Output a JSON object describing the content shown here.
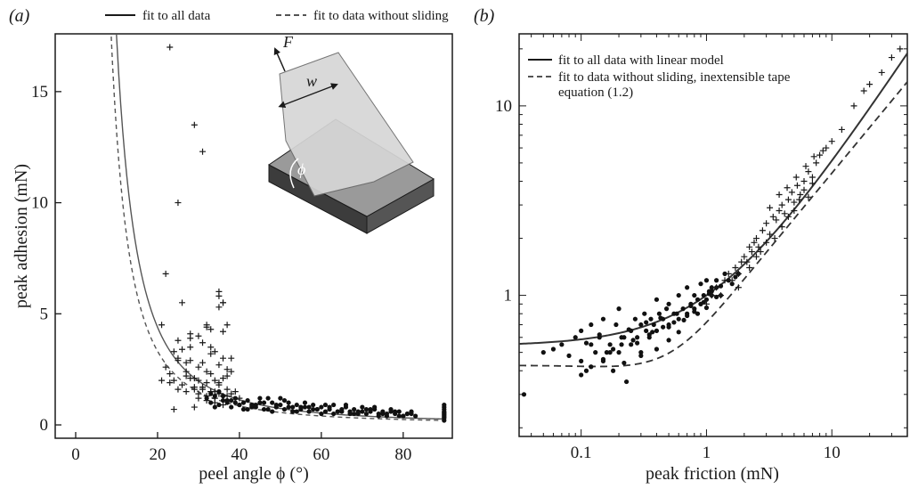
{
  "chart_data": [
    {
      "panel": "(a)",
      "type": "scatter",
      "xlabel": "peel angle ϕ (°)",
      "ylabel": "peak adhesion (mN)",
      "xlim": [
        -5,
        92
      ],
      "ylim": [
        -0.6,
        17.6
      ],
      "xticks": [
        0,
        20,
        40,
        60,
        80
      ],
      "yticks": [
        0,
        5,
        10,
        15
      ],
      "grid": false,
      "legend_position": "top",
      "series": [
        {
          "name": "fit to all data",
          "kind": "curve",
          "style": "solid",
          "color": "#555555",
          "amplitude": 26.5
        },
        {
          "name": "fit to data without sliding",
          "kind": "curve",
          "style": "dashed",
          "color": "#555555",
          "amplitude": 20.0
        },
        {
          "kind": "points",
          "marker": "plus",
          "color": "#1a1a1a",
          "x": [
            23,
            25,
            26,
            29,
            31,
            32,
            35,
            36,
            22,
            21,
            24,
            25,
            27,
            28,
            30,
            32,
            33,
            34,
            35,
            36,
            37,
            38,
            22,
            23,
            25,
            27,
            28,
            29,
            30,
            31,
            32,
            33,
            34,
            35,
            36,
            37,
            24,
            26,
            27,
            28,
            29,
            30,
            31,
            32,
            33,
            34,
            35,
            36,
            37,
            38,
            21,
            23,
            25,
            27,
            29,
            30,
            31,
            32,
            33,
            34,
            35,
            36,
            24,
            28,
            31,
            33,
            35,
            29,
            30,
            32,
            34,
            36,
            37,
            40,
            25,
            26,
            28,
            31,
            33,
            38,
            35,
            36,
            37,
            39
          ],
          "y": [
            17.0,
            10.0,
            5.5,
            13.5,
            12.3,
            4.5,
            6.0,
            5.5,
            6.8,
            4.5,
            3.3,
            3.0,
            2.8,
            2.9,
            4.0,
            4.4,
            3.5,
            3.3,
            5.8,
            5.5,
            2.5,
            3.0,
            2.6,
            2.3,
            2.9,
            2.2,
            3.5,
            2.1,
            2.6,
            2.8,
            2.4,
            3.2,
            2.0,
            2.7,
            3.0,
            2.2,
            2.0,
            1.8,
            2.4,
            2.1,
            1.6,
            2.0,
            1.7,
            1.9,
            2.3,
            1.5,
            1.8,
            2.1,
            1.6,
            1.4,
            2.0,
            1.9,
            1.6,
            1.5,
            1.7,
            1.4,
            1.6,
            1.3,
            1.5,
            1.2,
            1.4,
            1.3,
            0.7,
            3.9,
            1.7,
            1.5,
            1.9,
            0.8,
            1.2,
            1.1,
            1.0,
            0.9,
            1.3,
            1.2,
            3.8,
            3.4,
            4.1,
            3.7,
            4.3,
            2.4,
            5.3,
            4.2,
            4.5,
            1.5
          ]
        },
        {
          "kind": "points",
          "marker": "dot",
          "color": "#111111",
          "x": [
            32,
            33,
            34,
            35,
            36,
            37,
            38,
            39,
            40,
            41,
            42,
            43,
            44,
            45,
            46,
            47,
            48,
            49,
            50,
            51,
            52,
            53,
            54,
            55,
            56,
            57,
            58,
            59,
            60,
            61,
            62,
            63,
            64,
            65,
            66,
            67,
            68,
            69,
            70,
            71,
            72,
            73,
            74,
            75,
            76,
            77,
            78,
            79,
            80,
            81,
            82,
            83,
            34,
            36,
            38,
            40,
            42,
            44,
            46,
            48,
            50,
            52,
            54,
            56,
            58,
            60,
            62,
            64,
            66,
            68,
            70,
            72,
            74,
            76,
            78,
            80,
            82,
            33,
            37,
            41,
            45,
            49,
            53,
            57,
            61,
            65,
            69,
            73,
            77,
            81,
            35,
            39,
            43,
            47,
            51,
            55,
            59,
            63,
            67,
            71,
            75,
            79,
            90,
            90,
            90,
            90,
            90,
            90,
            90,
            90,
            90,
            90,
            90
          ],
          "y": [
            1.2,
            1.0,
            1.3,
            0.9,
            1.1,
            1.0,
            0.8,
            1.2,
            0.9,
            1.0,
            1.1,
            0.8,
            0.9,
            1.0,
            0.7,
            1.2,
            1.0,
            0.8,
            0.9,
            0.7,
            1.0,
            0.8,
            0.9,
            0.7,
            0.8,
            0.6,
            0.9,
            0.7,
            0.8,
            0.6,
            0.7,
            0.9,
            0.6,
            0.7,
            0.8,
            0.5,
            0.7,
            0.6,
            0.8,
            0.5,
            0.6,
            0.7,
            0.5,
            0.6,
            0.4,
            0.7,
            0.5,
            0.6,
            0.4,
            0.5,
            0.6,
            0.4,
            0.8,
            1.3,
            1.1,
            0.9,
            0.7,
            0.8,
            1.0,
            0.6,
            1.2,
            0.8,
            0.6,
            1.0,
            0.7,
            0.5,
            0.8,
            0.6,
            0.9,
            0.5,
            0.6,
            0.7,
            0.4,
            0.5,
            0.6,
            0.4,
            0.5,
            1.4,
            1.1,
            0.7,
            1.2,
            0.9,
            0.6,
            0.8,
            0.9,
            0.6,
            0.5,
            0.8,
            0.6,
            0.5,
            1.5,
            1.0,
            0.9,
            0.7,
            1.1,
            0.8,
            0.7,
            0.5,
            0.6,
            0.7,
            0.5,
            0.4,
            0.2,
            0.3,
            0.4,
            0.5,
            0.6,
            0.7,
            0.8,
            0.9,
            0.35,
            0.45,
            0.55
          ]
        }
      ]
    },
    {
      "panel": "(b)",
      "type": "scatter",
      "xscale": "log",
      "yscale": "log",
      "xlabel": "peak friction (mN)",
      "xlim": [
        0.032,
        40
      ],
      "ylim": [
        0.18,
        24
      ],
      "xticks": [
        0.1,
        1,
        10
      ],
      "yticks": [
        1,
        10
      ],
      "grid": false,
      "legend_position": "top-left",
      "series": [
        {
          "name": "fit to all data with linear model",
          "kind": "curve",
          "style": "solid",
          "color": "#333333",
          "offset": 0.54,
          "slope": 0.46
        },
        {
          "name": "fit to data without sliding, inextensible tape",
          "name_line2": "equation (1.2)",
          "kind": "curve",
          "style": "dashed",
          "color": "#333333",
          "a": 0.7,
          "b": 0.8
        },
        {
          "kind": "points",
          "marker": "dot",
          "color": "#111111",
          "x": [
            0.035,
            0.05,
            0.06,
            0.07,
            0.08,
            0.09,
            0.1,
            0.1,
            0.11,
            0.12,
            0.12,
            0.13,
            0.14,
            0.15,
            0.15,
            0.16,
            0.17,
            0.18,
            0.19,
            0.2,
            0.2,
            0.21,
            0.22,
            0.23,
            0.25,
            0.25,
            0.27,
            0.28,
            0.3,
            0.3,
            0.32,
            0.33,
            0.35,
            0.36,
            0.38,
            0.4,
            0.4,
            0.42,
            0.45,
            0.48,
            0.5,
            0.5,
            0.55,
            0.6,
            0.6,
            0.65,
            0.7,
            0.7,
            0.75,
            0.8,
            0.8,
            0.85,
            0.9,
            0.9,
            0.95,
            1.0,
            1.0,
            1.05,
            1.1,
            1.1,
            1.2,
            1.2,
            1.3,
            1.4,
            1.5,
            1.6,
            1.7,
            1.8,
            0.1,
            0.12,
            0.15,
            0.18,
            0.22,
            0.26,
            0.3,
            0.35,
            0.4,
            0.45,
            0.5,
            0.55,
            0.6,
            0.7,
            0.8,
            0.9,
            1.0,
            1.1,
            1.2,
            1.3,
            0.11,
            0.14,
            0.17,
            0.21,
            0.24,
            0.28,
            0.33,
            0.37,
            0.43,
            0.5,
            0.58,
            0.66,
            0.75,
            0.85,
            0.95,
            1.05
          ],
          "y": [
            0.3,
            0.5,
            0.52,
            0.55,
            0.48,
            0.6,
            0.45,
            0.65,
            0.4,
            0.55,
            0.7,
            0.5,
            0.6,
            0.45,
            0.75,
            0.5,
            0.55,
            0.4,
            0.7,
            0.5,
            0.85,
            0.55,
            0.6,
            0.35,
            0.65,
            0.55,
            0.75,
            0.6,
            0.7,
            0.5,
            0.8,
            0.65,
            0.6,
            0.75,
            0.7,
            0.95,
            0.65,
            0.8,
            0.75,
            0.85,
            0.7,
            0.9,
            0.8,
            0.75,
            1.0,
            0.85,
            0.8,
            1.1,
            0.9,
            0.85,
            1.0,
            0.95,
            0.9,
            1.15,
            1.0,
            0.95,
            1.2,
            1.05,
            1.1,
            1.0,
            1.2,
            1.1,
            1.0,
            1.3,
            1.2,
            1.15,
            1.25,
            1.3,
            0.38,
            0.42,
            0.46,
            0.52,
            0.44,
            0.58,
            0.48,
            0.62,
            0.52,
            0.68,
            0.58,
            0.72,
            0.64,
            0.78,
            0.82,
            0.9,
            0.86,
            1.05,
            0.98,
            1.12,
            0.56,
            0.62,
            0.5,
            0.6,
            0.66,
            0.56,
            0.72,
            0.64,
            0.76,
            0.68,
            0.8,
            0.74,
            0.88,
            0.8,
            0.92,
            1.02
          ]
        },
        {
          "kind": "points",
          "marker": "plus",
          "color": "#1a1a1a",
          "x": [
            1.0,
            1.1,
            1.2,
            1.3,
            1.4,
            1.5,
            1.6,
            1.7,
            1.8,
            1.9,
            2.0,
            2.1,
            2.2,
            2.3,
            2.4,
            2.5,
            2.6,
            2.8,
            3.0,
            3.2,
            3.4,
            3.6,
            3.8,
            4.0,
            4.2,
            4.5,
            4.8,
            5.0,
            5.3,
            5.6,
            6.0,
            6.5,
            7.0,
            7.5,
            8.0,
            9.0,
            10,
            12,
            15,
            18,
            20,
            25,
            30,
            35,
            2.5,
            3.0,
            3.5,
            4.0,
            4.5,
            5.0,
            5.5,
            6.0,
            6.5,
            7.0,
            3.2,
            3.8,
            4.4,
            5.2,
            6.2,
            7.2,
            8.5,
            1.8,
            2.2,
            2.7
          ],
          "y": [
            0.9,
            1.0,
            1.1,
            1.0,
            1.2,
            1.3,
            1.2,
            1.4,
            1.3,
            1.5,
            1.6,
            1.5,
            1.8,
            1.7,
            1.9,
            2.0,
            1.8,
            2.2,
            2.4,
            2.1,
            2.6,
            2.5,
            2.8,
            3.0,
            2.7,
            3.2,
            3.5,
            3.1,
            3.8,
            3.4,
            4.0,
            4.5,
            4.2,
            5.0,
            5.5,
            6.0,
            6.5,
            7.5,
            10,
            12,
            13,
            15,
            18,
            20,
            1.6,
            1.9,
            2.0,
            2.3,
            2.6,
            2.8,
            3.2,
            3.6,
            3.3,
            3.9,
            2.9,
            3.4,
            3.7,
            4.2,
            4.8,
            5.4,
            5.8,
            1.1,
            1.4,
            1.7
          ]
        }
      ]
    }
  ],
  "figure": {
    "panel_a_label": "(a)",
    "panel_b_label": "(b)",
    "inset": {
      "force_label": "F",
      "width_label": "w",
      "angle_label": "ϕ"
    }
  }
}
